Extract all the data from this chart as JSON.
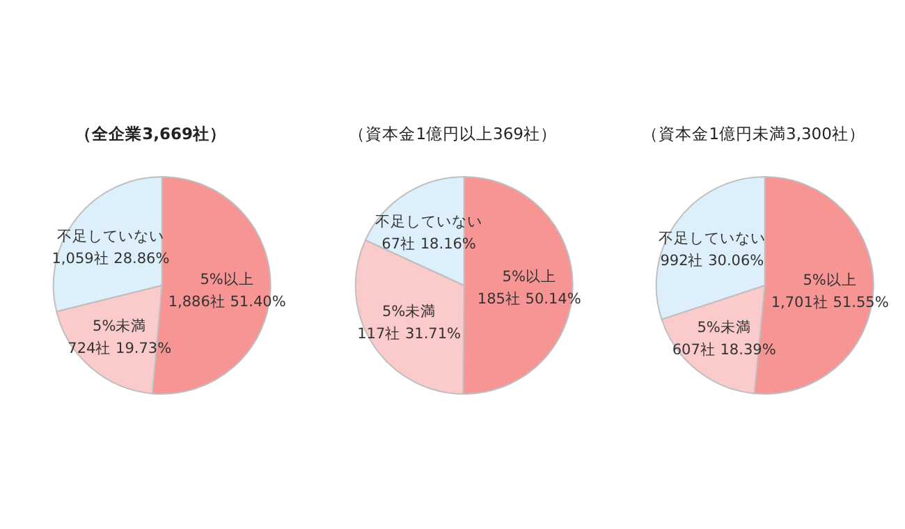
{
  "chart_data": [
    {
      "type": "pie",
      "title": "（全企業3,669社）",
      "categories": [
        "5%以上",
        "5%未満",
        "不足していない"
      ],
      "values": [
        1886,
        724,
        1059
      ],
      "colors": [
        "#f79494",
        "#fbcaca",
        "#ddeffa"
      ],
      "value_labels": [
        "1,886社 51.40%",
        "724社 19.73%",
        "1,059社 28.86%"
      ]
    },
    {
      "type": "pie",
      "title": "（資本金1億円以上369社）",
      "categories": [
        "5%以上",
        "5%未満",
        "不足していない"
      ],
      "values": [
        185,
        117,
        67
      ],
      "colors": [
        "#f79494",
        "#fbcaca",
        "#ddeffa"
      ],
      "value_labels": [
        "185社 50.14%",
        "117社 31.71%",
        "67社 18.16%"
      ]
    },
    {
      "type": "pie",
      "title": "（資本金1億円未満3,300社）",
      "categories": [
        "5%以上",
        "5%未満",
        "不足していない"
      ],
      "values": [
        1701,
        607,
        992
      ],
      "colors": [
        "#f79494",
        "#fbcaca",
        "#ddeffa"
      ],
      "value_labels": [
        "1,701社 51.55%",
        "607社 18.39%",
        "992社 30.06%"
      ]
    }
  ]
}
